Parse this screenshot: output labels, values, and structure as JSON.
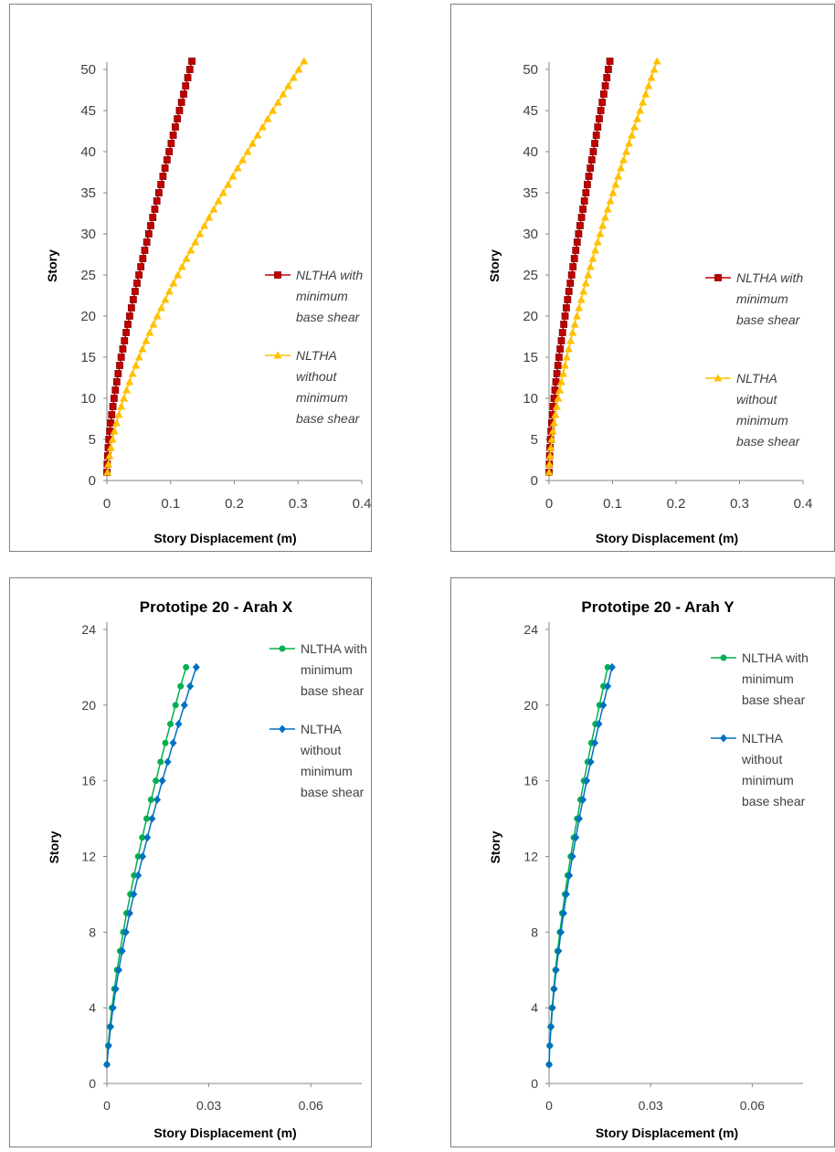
{
  "chart_data": [
    {
      "type": "line",
      "title": "",
      "xlabel": "Story Displacement (m)",
      "ylabel": "Story",
      "xlim": [
        0,
        0.4
      ],
      "ylim": [
        0,
        50
      ],
      "xticks": [
        "0",
        "0.1",
        "0.2",
        "0.3",
        "0.4"
      ],
      "yticks": [
        "0",
        "5",
        "10",
        "15",
        "20",
        "25",
        "30",
        "35",
        "40",
        "45",
        "50"
      ],
      "legend_position": "right",
      "legend_italic": true,
      "series": [
        {
          "name": "NLTHA with minimum base shear",
          "color": "#c00000",
          "marker": "square",
          "x": [
            0,
            0.0005,
            0.0012,
            0.0021,
            0.0032,
            0.0045,
            0.006,
            0.0076,
            0.0094,
            0.0113,
            0.0133,
            0.0155,
            0.0177,
            0.0201,
            0.0225,
            0.025,
            0.0276,
            0.0302,
            0.033,
            0.0357,
            0.0385,
            0.0414,
            0.0443,
            0.0473,
            0.0503,
            0.0533,
            0.0564,
            0.0594,
            0.0626,
            0.0657,
            0.0688,
            0.072,
            0.0752,
            0.0784,
            0.0816,
            0.0848,
            0.088,
            0.0912,
            0.0944,
            0.0977,
            0.1009,
            0.1041,
            0.1074,
            0.1106,
            0.1139,
            0.1171,
            0.1204,
            0.1236,
            0.1269,
            0.1301,
            0.1334
          ],
          "y": [
            1,
            2,
            3,
            4,
            5,
            6,
            7,
            8,
            9,
            10,
            11,
            12,
            13,
            14,
            15,
            16,
            17,
            18,
            19,
            20,
            21,
            22,
            23,
            24,
            25,
            26,
            27,
            28,
            29,
            30,
            31,
            32,
            33,
            34,
            35,
            36,
            37,
            38,
            39,
            40,
            41,
            42,
            43,
            44,
            45,
            46,
            47,
            48,
            49,
            50,
            51
          ]
        },
        {
          "name": "NLTHA without minimum base shear",
          "color": "#ffc000",
          "marker": "triangle",
          "x": [
            0.001,
            0.0023,
            0.0041,
            0.0063,
            0.0089,
            0.0118,
            0.0151,
            0.0186,
            0.0225,
            0.0266,
            0.0309,
            0.0355,
            0.0403,
            0.0453,
            0.0505,
            0.0559,
            0.0615,
            0.0672,
            0.0731,
            0.0791,
            0.0853,
            0.0916,
            0.098,
            0.1045,
            0.1112,
            0.1179,
            0.1248,
            0.1317,
            0.1387,
            0.1458,
            0.153,
            0.1603,
            0.1676,
            0.175,
            0.1825,
            0.19,
            0.1976,
            0.2053,
            0.213,
            0.2208,
            0.2286,
            0.2365,
            0.2444,
            0.2524,
            0.2604,
            0.2685,
            0.2766,
            0.2847,
            0.2929,
            0.3011,
            0.3094
          ],
          "y": [
            1,
            2,
            3,
            4,
            5,
            6,
            7,
            8,
            9,
            10,
            11,
            12,
            13,
            14,
            15,
            16,
            17,
            18,
            19,
            20,
            21,
            22,
            23,
            24,
            25,
            26,
            27,
            28,
            29,
            30,
            31,
            32,
            33,
            34,
            35,
            36,
            37,
            38,
            39,
            40,
            41,
            42,
            43,
            44,
            45,
            46,
            47,
            48,
            49,
            50,
            51
          ]
        }
      ]
    },
    {
      "type": "line",
      "title": "",
      "xlabel": "Story Displacement (m)",
      "ylabel": "Story",
      "xlim": [
        0,
        0.4
      ],
      "ylim": [
        0,
        50
      ],
      "xticks": [
        "0",
        "0.1",
        "0.2",
        "0.3",
        "0.4"
      ],
      "yticks": [
        "0",
        "5",
        "10",
        "15",
        "20",
        "25",
        "30",
        "35",
        "40",
        "45",
        "50"
      ],
      "legend_position": "right",
      "legend_italic": true,
      "series": [
        {
          "name": "NLTHA with minimum base shear",
          "color": "#c00000",
          "marker": "square",
          "x": [
            0,
            0.0004,
            0.0009,
            0.0015,
            0.0023,
            0.0032,
            0.0042,
            0.0053,
            0.0065,
            0.0079,
            0.0093,
            0.0108,
            0.0124,
            0.014,
            0.0157,
            0.0175,
            0.0194,
            0.0212,
            0.0232,
            0.0252,
            0.0272,
            0.0292,
            0.0313,
            0.0334,
            0.0356,
            0.0377,
            0.0399,
            0.0421,
            0.0443,
            0.0466,
            0.0488,
            0.0511,
            0.0534,
            0.0557,
            0.058,
            0.0603,
            0.0627,
            0.065,
            0.0673,
            0.0697,
            0.072,
            0.0744,
            0.0767,
            0.0791,
            0.0815,
            0.0838,
            0.0862,
            0.0886,
            0.091,
            0.0934,
            0.0958
          ],
          "y": [
            1,
            2,
            3,
            4,
            5,
            6,
            7,
            8,
            9,
            10,
            11,
            12,
            13,
            14,
            15,
            16,
            17,
            18,
            19,
            20,
            21,
            22,
            23,
            24,
            25,
            26,
            27,
            28,
            29,
            30,
            31,
            32,
            33,
            34,
            35,
            36,
            37,
            38,
            39,
            40,
            41,
            42,
            43,
            44,
            45,
            46,
            47,
            48,
            49,
            50,
            51
          ]
        },
        {
          "name": "NLTHA without minimum base shear",
          "color": "#ffc000",
          "marker": "triangle",
          "x": [
            0,
            0.0007,
            0.0017,
            0.0029,
            0.0044,
            0.006,
            0.0079,
            0.0099,
            0.0121,
            0.0144,
            0.0169,
            0.0195,
            0.0222,
            0.025,
            0.0279,
            0.0309,
            0.034,
            0.0372,
            0.0405,
            0.0438,
            0.0472,
            0.0507,
            0.0542,
            0.0578,
            0.0615,
            0.0652,
            0.0689,
            0.0727,
            0.0766,
            0.0805,
            0.0844,
            0.0884,
            0.0924,
            0.0965,
            0.1006,
            0.1047,
            0.1089,
            0.1131,
            0.1173,
            0.1216,
            0.1259,
            0.1302,
            0.1345,
            0.1389,
            0.1433,
            0.1477,
            0.1521,
            0.1566,
            0.1611,
            0.1656,
            0.1701
          ],
          "y": [
            1,
            2,
            3,
            4,
            5,
            6,
            7,
            8,
            9,
            10,
            11,
            12,
            13,
            14,
            15,
            16,
            17,
            18,
            19,
            20,
            21,
            22,
            23,
            24,
            25,
            26,
            27,
            28,
            29,
            30,
            31,
            32,
            33,
            34,
            35,
            36,
            37,
            38,
            39,
            40,
            41,
            42,
            43,
            44,
            45,
            46,
            47,
            48,
            49,
            50,
            51
          ]
        }
      ]
    },
    {
      "type": "line",
      "title": "Prototipe 20 - Arah X",
      "xlabel": "Story Displacement (m)",
      "ylabel": "Story",
      "xlim": [
        0,
        0.075
      ],
      "ylim": [
        0,
        24
      ],
      "xticks": [
        "0",
        "0.03",
        "0.06"
      ],
      "yticks": [
        "0",
        "4",
        "8",
        "12",
        "16",
        "20",
        "24"
      ],
      "legend_position": "right",
      "legend_italic": false,
      "series": [
        {
          "name": "NLTHA with minimum base shear",
          "color": "#00b050",
          "marker": "circle",
          "x": [
            0,
            0.0004,
            0.0009,
            0.0015,
            0.0022,
            0.003,
            0.0039,
            0.0048,
            0.0058,
            0.0069,
            0.008,
            0.0092,
            0.0104,
            0.0117,
            0.013,
            0.0144,
            0.0158,
            0.0172,
            0.0187,
            0.0202,
            0.0217,
            0.0233
          ],
          "y": [
            1,
            2,
            3,
            4,
            5,
            6,
            7,
            8,
            9,
            10,
            11,
            12,
            13,
            14,
            15,
            16,
            17,
            18,
            19,
            20,
            21,
            22
          ]
        },
        {
          "name": "NLTHA without minimum base shear",
          "color": "#0070c0",
          "marker": "diamond",
          "x": [
            0,
            0.0005,
            0.0011,
            0.0018,
            0.0026,
            0.0035,
            0.0045,
            0.0056,
            0.0067,
            0.0079,
            0.0092,
            0.0105,
            0.0119,
            0.0133,
            0.0148,
            0.0163,
            0.0179,
            0.0195,
            0.0211,
            0.0228,
            0.0245,
            0.0263
          ],
          "y": [
            1,
            2,
            3,
            4,
            5,
            6,
            7,
            8,
            9,
            10,
            11,
            12,
            13,
            14,
            15,
            16,
            17,
            18,
            19,
            20,
            21,
            22
          ]
        }
      ]
    },
    {
      "type": "line",
      "title": "Prototipe 20 - Arah Y",
      "xlabel": "Story Displacement (m)",
      "ylabel": "Story",
      "xlim": [
        0,
        0.075
      ],
      "ylim": [
        0,
        24
      ],
      "xticks": [
        "0",
        "0.03",
        "0.06"
      ],
      "yticks": [
        "0",
        "4",
        "8",
        "12",
        "16",
        "20",
        "24"
      ],
      "legend_position": "right",
      "legend_italic": false,
      "series": [
        {
          "name": "NLTHA with minimum base shear",
          "color": "#00b050",
          "marker": "circle",
          "x": [
            0,
            0.0002,
            0.0005,
            0.0009,
            0.0014,
            0.0019,
            0.0025,
            0.0032,
            0.0039,
            0.0047,
            0.0055,
            0.0064,
            0.0073,
            0.0083,
            0.0093,
            0.0103,
            0.0114,
            0.0125,
            0.0137,
            0.0149,
            0.0161,
            0.0173
          ],
          "y": [
            1,
            2,
            3,
            4,
            5,
            6,
            7,
            8,
            9,
            10,
            11,
            12,
            13,
            14,
            15,
            16,
            17,
            18,
            19,
            20,
            21,
            22
          ]
        },
        {
          "name": "NLTHA without minimum base shear",
          "color": "#0070c0",
          "marker": "diamond",
          "x": [
            0,
            0.0002,
            0.0006,
            0.001,
            0.0015,
            0.0021,
            0.0028,
            0.0035,
            0.0043,
            0.0051,
            0.006,
            0.0069,
            0.0079,
            0.0089,
            0.01,
            0.0111,
            0.0123,
            0.0135,
            0.0147,
            0.016,
            0.0173,
            0.0186
          ],
          "y": [
            1,
            2,
            3,
            4,
            5,
            6,
            7,
            8,
            9,
            10,
            11,
            12,
            13,
            14,
            15,
            16,
            17,
            18,
            19,
            20,
            21,
            22
          ]
        }
      ]
    }
  ]
}
